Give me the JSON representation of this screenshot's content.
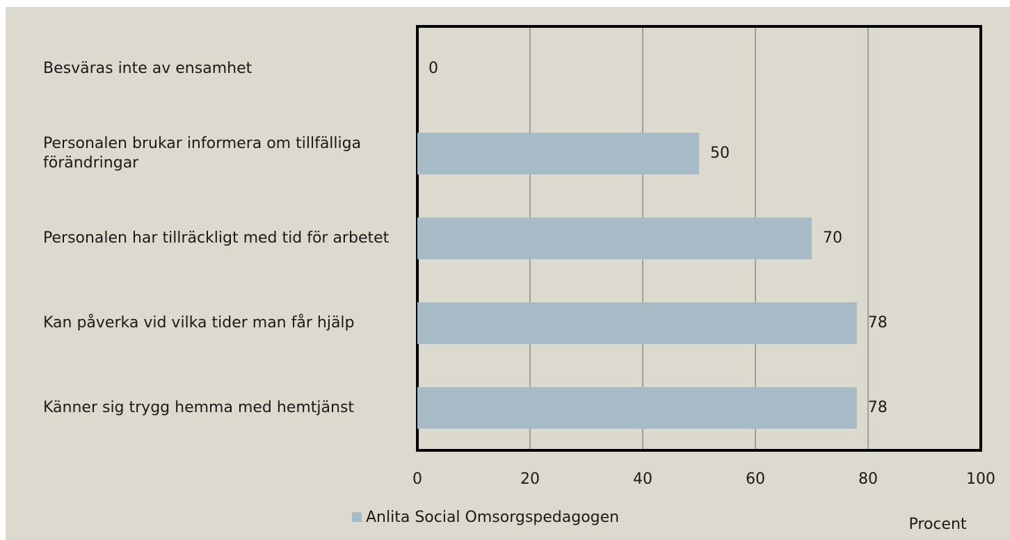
{
  "chart_data": {
    "type": "barh",
    "categories": [
      "Besväras inte av ensamhet",
      "Personalen brukar informera om tillfälliga förändringar",
      "Personalen har tillräckligt med tid för arbetet",
      "Kan påverka vid vilka tider man får hjälp",
      "Känner sig trygg hemma med hemtjänst"
    ],
    "series": [
      {
        "name": "Anlita Social Omsorgspedagogen",
        "color": "#a6bbc6",
        "values": [
          0,
          50,
          70,
          78,
          78
        ]
      }
    ],
    "xlim": [
      0,
      100
    ],
    "xticks": [
      0,
      20,
      40,
      60,
      80,
      100
    ],
    "xlabel": "Procent",
    "grid": true
  }
}
